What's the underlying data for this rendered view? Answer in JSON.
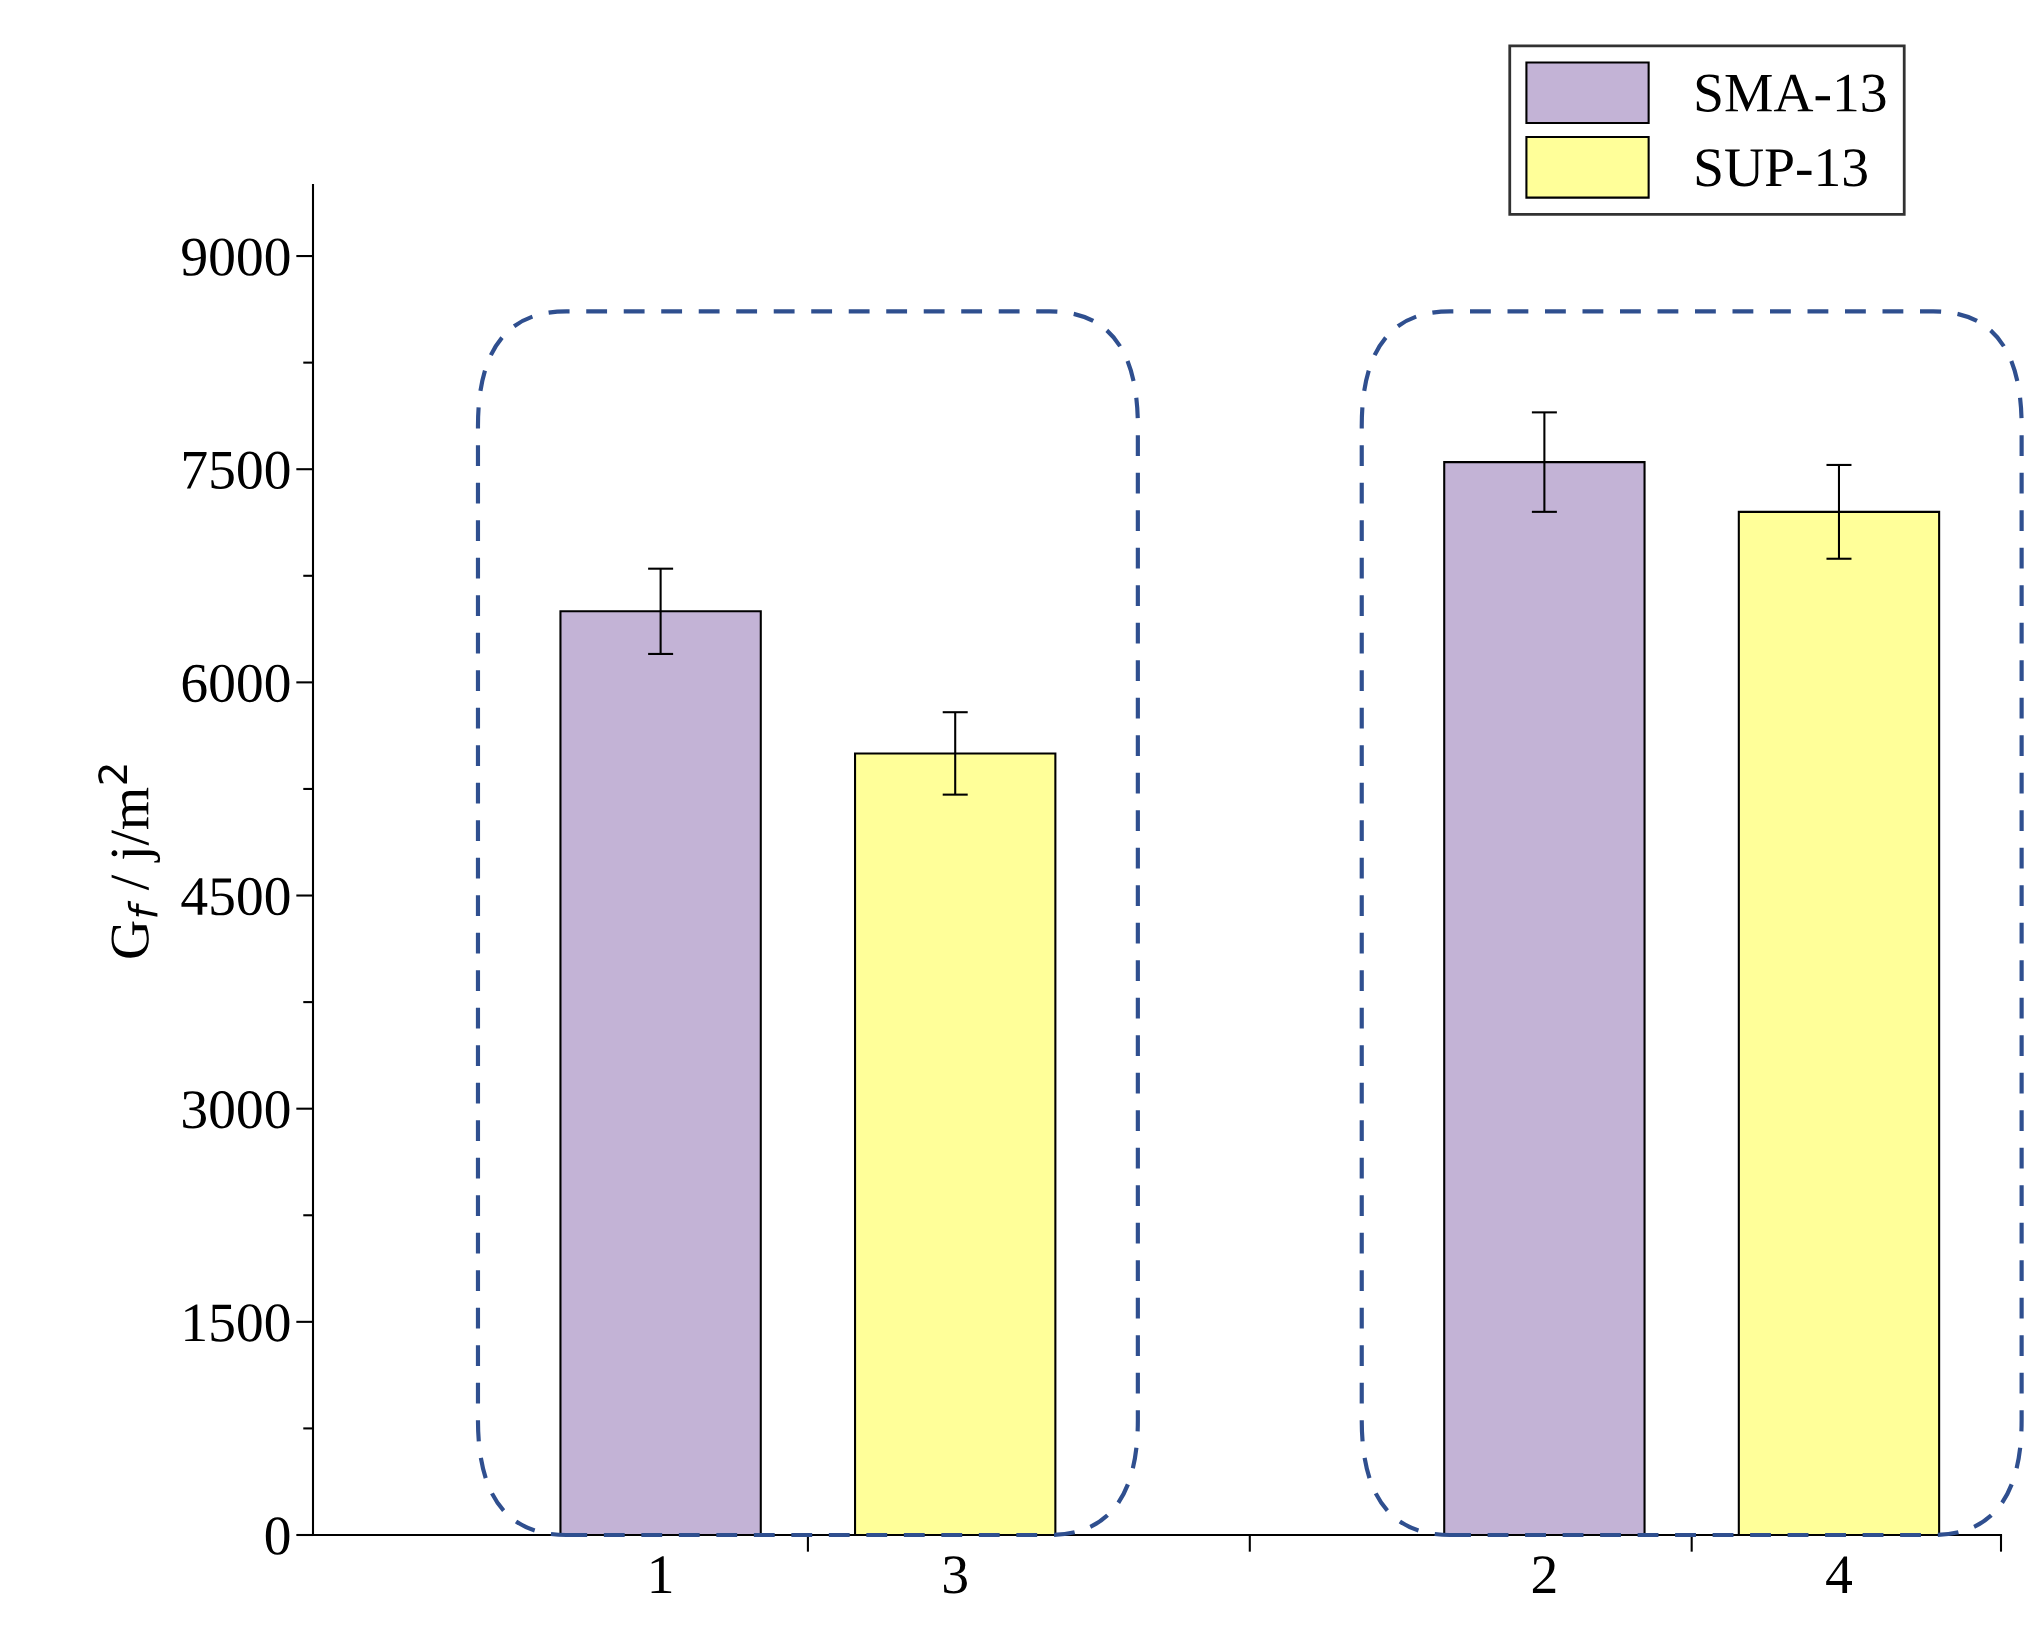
{
  "chart_data": {
    "type": "bar",
    "ylabel": "G$_{f}$ / j/m$^{2}$",
    "categories": [
      "1",
      "3",
      null,
      "2",
      "4"
    ],
    "series": [
      {
        "name": "SMA-13",
        "color": "#c3b3d6",
        "values": [
          6500,
          null,
          null,
          7550,
          null
        ],
        "errors": [
          300,
          null,
          null,
          350,
          null
        ]
      },
      {
        "name": "SUP-13",
        "color": "#ffff99",
        "values": [
          null,
          5500,
          null,
          null,
          7200
        ],
        "errors": [
          null,
          290,
          null,
          null,
          330
        ]
      }
    ],
    "ylim": [
      0,
      9500
    ],
    "yticks": [
      0,
      1500,
      3000,
      4500,
      6000,
      7500,
      9000
    ],
    "grid": false,
    "legend": "top right"
  }
}
